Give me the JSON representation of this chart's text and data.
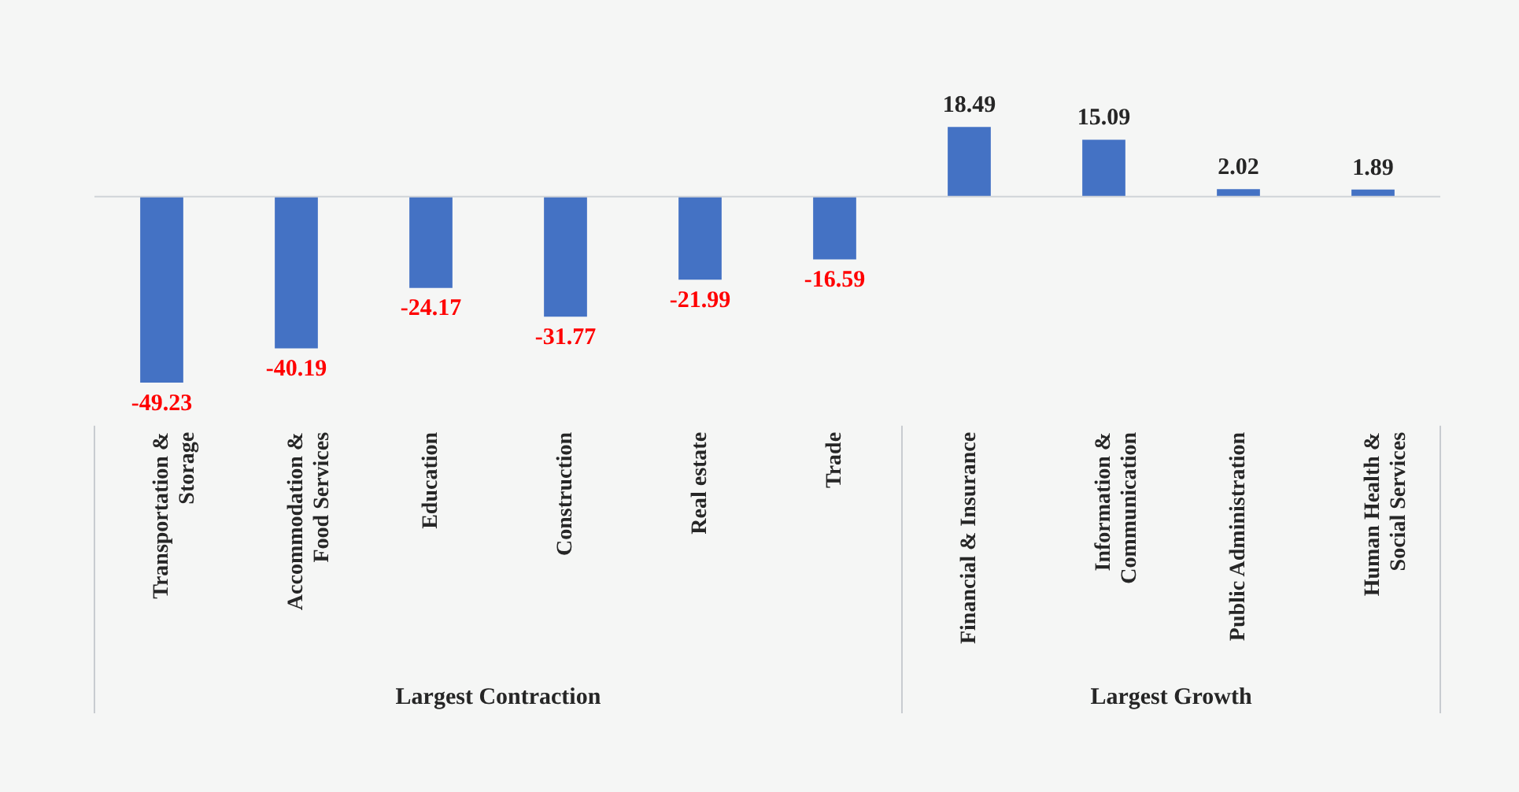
{
  "chart_data": {
    "type": "bar",
    "categories": [
      "Transportation & Storage",
      "Accommodation & Food Services",
      "Education",
      "Construction",
      "Real estate",
      "Trade",
      "Financial & Insurance",
      "Information & Communication",
      "Public Administration",
      "Human Health & Social Services"
    ],
    "values": [
      -49.23,
      -40.19,
      -24.17,
      -31.77,
      -21.99,
      -16.59,
      18.49,
      15.09,
      2.02,
      1.89
    ],
    "color": "#4472c4",
    "data_labels": true,
    "tick_labels": "x",
    "annotations": [
      "Largest Contraction",
      "Largest Growth"
    ]
  }
}
